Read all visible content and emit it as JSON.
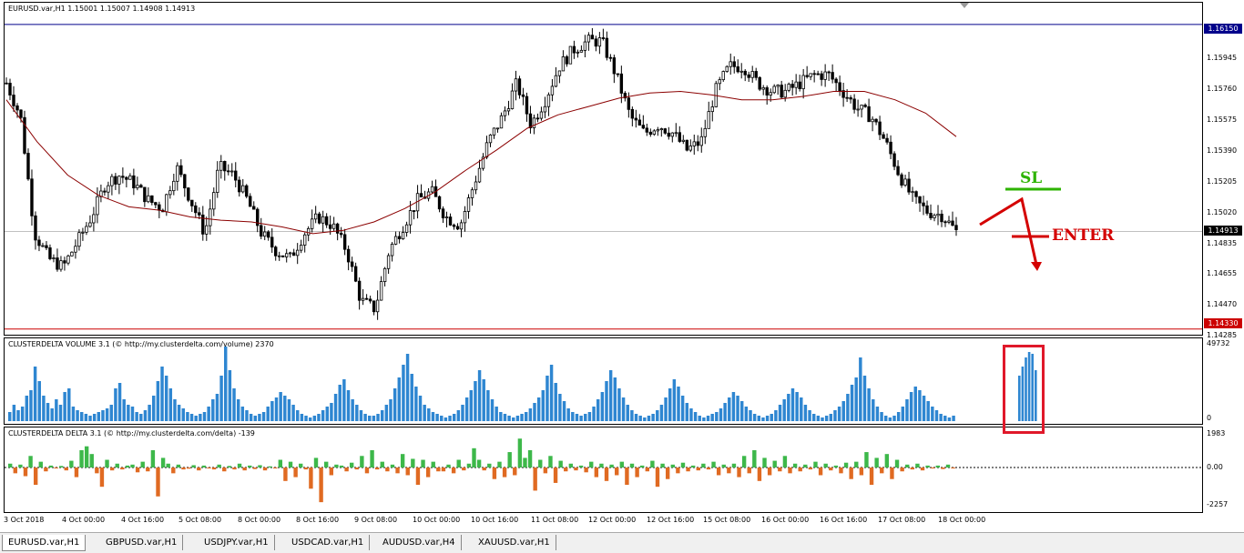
{
  "main_chart": {
    "title": "EURUSD.var,H1  1.15001 1.15007 1.14908 1.14913",
    "upper_line_label": "1.16150",
    "lower_line_label": "1.14330",
    "current_price_label": "1.14913",
    "price_ticks": [
      "1.15945",
      "1.15760",
      "1.15575",
      "1.15390",
      "1.15205",
      "1.15020",
      "1.14835",
      "1.14655",
      "1.14470",
      "1.14285"
    ],
    "colors": {
      "upper_line": "#00008b",
      "lower_line": "#cc0000",
      "ma": "#8b0000",
      "candle": "#000000",
      "sl": "#2db300",
      "enter": "#d40000"
    },
    "annotations": {
      "sl": "SL",
      "enter": "ENTER"
    },
    "chart_data": {
      "type": "candlestick",
      "symbol": "EURUSD.var",
      "timeframe": "H1",
      "ylim": [
        1.14285,
        1.1628
      ],
      "levels": {
        "upper": 1.1615,
        "lower": 1.1433,
        "current": 1.14913
      },
      "x_tick_labels": [
        "3 Oct 2018",
        "4 Oct 00:00",
        "4 Oct 16:00",
        "5 Oct 08:00",
        "8 Oct 00:00",
        "8 Oct 16:00",
        "9 Oct 08:00",
        "10 Oct 00:00",
        "10 Oct 16:00",
        "11 Oct 08:00",
        "12 Oct 00:00",
        "12 Oct 16:00",
        "15 Oct 08:00",
        "16 Oct 00:00",
        "16 Oct 16:00",
        "17 Oct 08:00",
        "18 Oct 00:00"
      ],
      "close_path": [
        1.158,
        1.156,
        1.149,
        1.1475,
        1.147,
        1.1485,
        1.15,
        1.152,
        1.1525,
        1.152,
        1.151,
        1.1505,
        1.153,
        1.151,
        1.149,
        1.153,
        1.1525,
        1.151,
        1.149,
        1.148,
        1.1475,
        1.149,
        1.15,
        1.1495,
        1.148,
        1.145,
        1.1445,
        1.148,
        1.1495,
        1.151,
        1.1515,
        1.15,
        1.1495,
        1.152,
        1.1545,
        1.156,
        1.158,
        1.1555,
        1.157,
        1.159,
        1.16,
        1.1605,
        1.1605,
        1.1585,
        1.156,
        1.155,
        1.1555,
        1.155,
        1.154,
        1.1545,
        1.1575,
        1.159,
        1.159,
        1.158,
        1.1575,
        1.1575,
        1.158,
        1.1585,
        1.1585,
        1.1575,
        1.1565,
        1.156,
        1.1545,
        1.1525,
        1.151,
        1.1503,
        1.1501,
        1.14913
      ],
      "ma_path": [
        1.157,
        1.1545,
        1.1525,
        1.1513,
        1.1506,
        1.1504,
        1.15,
        1.1498,
        1.1497,
        1.1494,
        1.149,
        1.1492,
        1.1497,
        1.1505,
        1.1515,
        1.1528,
        1.154,
        1.1553,
        1.1561,
        1.1566,
        1.1571,
        1.1574,
        1.1575,
        1.1573,
        1.157,
        1.157,
        1.1572,
        1.1575,
        1.1575,
        1.157,
        1.1562,
        1.1548
      ]
    }
  },
  "volume": {
    "title": "CLUSTERDELTA VOLUME 3.1 (© http://my.clusterdelta.com/volume) 2370",
    "max_label": "49732",
    "zero_label": "0",
    "color": "#2e86d1",
    "chart_data": {
      "type": "bar",
      "ylim": [
        0,
        49732
      ],
      "values": [
        5,
        9,
        6,
        8,
        14,
        17,
        30,
        22,
        14,
        10,
        7,
        12,
        9,
        16,
        18,
        8,
        6,
        5,
        4,
        3,
        4,
        5,
        6,
        7,
        9,
        18,
        21,
        12,
        9,
        8,
        5,
        4,
        6,
        9,
        14,
        22,
        30,
        25,
        18,
        12,
        9,
        7,
        5,
        4,
        3,
        4,
        5,
        8,
        12,
        15,
        25,
        41,
        28,
        18,
        12,
        8,
        6,
        4,
        3,
        4,
        5,
        8,
        11,
        13,
        16,
        14,
        12,
        9,
        6,
        4,
        3,
        2,
        3,
        4,
        6,
        8,
        10,
        15,
        20,
        23,
        17,
        12,
        9,
        6,
        4,
        3,
        3,
        4,
        6,
        9,
        12,
        18,
        24,
        31,
        37,
        26,
        19,
        14,
        9,
        7,
        5,
        4,
        3,
        2,
        3,
        4,
        6,
        9,
        13,
        17,
        22,
        28,
        23,
        17,
        12,
        8,
        5,
        4,
        3,
        2,
        3,
        4,
        5,
        7,
        10,
        13,
        17,
        25,
        31,
        21,
        15,
        11,
        7,
        5,
        4,
        3,
        4,
        5,
        8,
        12,
        16,
        22,
        28,
        24,
        18,
        13,
        9,
        6,
        4,
        3,
        2,
        3,
        4,
        6,
        9,
        13,
        18,
        23,
        19,
        14,
        10,
        7,
        5,
        3,
        2,
        3,
        4,
        5,
        7,
        10,
        13,
        16,
        14,
        11,
        8,
        6,
        4,
        3,
        2,
        3,
        4,
        6,
        9,
        12,
        15,
        18,
        16,
        13,
        9,
        6,
        4,
        3,
        2,
        3,
        4,
        6,
        8,
        11,
        15,
        20,
        24,
        35,
        25,
        18,
        12,
        8,
        5,
        3,
        2,
        3,
        5,
        8,
        12,
        16,
        19,
        17,
        14,
        11,
        8,
        6,
        4,
        3,
        2,
        3
      ],
      "highlight_values": [
        25,
        30,
        35,
        38,
        37,
        28
      ]
    }
  },
  "delta": {
    "title": "CLUSTERDELTA DELTA 3.1 (© http://my.clusterdelta.com/delta) -139",
    "max_label": "1983",
    "zero_label": "0.00",
    "min_label": "-2257",
    "colors": {
      "positive": "#3db84a",
      "negative": "#e06a22"
    },
    "chart_data": {
      "type": "bar",
      "ylim": [
        -2257,
        1983
      ],
      "values": [
        200,
        -300,
        150,
        -450,
        600,
        -900,
        300,
        -200,
        100,
        -50,
        80,
        -150,
        350,
        -500,
        900,
        1100,
        700,
        -300,
        -1000,
        400,
        -150,
        200,
        -100,
        100,
        150,
        -250,
        300,
        -200,
        900,
        -1500,
        500,
        200,
        -300,
        150,
        -100,
        -60,
        120,
        -150,
        100,
        -50,
        -100,
        150,
        -200,
        80,
        -100,
        200,
        -150,
        100,
        -80,
        120,
        -150,
        60,
        -50,
        400,
        -700,
        300,
        -500,
        200,
        -100,
        -1100,
        500,
        -1800,
        300,
        -400,
        150,
        100,
        -200,
        250,
        -100,
        600,
        -300,
        900,
        -100,
        300,
        -200,
        150,
        -300,
        700,
        -400,
        450,
        -900,
        400,
        -500,
        300,
        -200,
        -200,
        150,
        -300,
        400,
        -150,
        200,
        1000,
        400,
        -150,
        200,
        -600,
        300,
        -500,
        800,
        -400,
        1500,
        500,
        900,
        -1200,
        400,
        -300,
        600,
        -800,
        350,
        -200,
        200,
        -150,
        100,
        -250,
        300,
        -500,
        200,
        -700,
        150,
        -400,
        300,
        -900,
        200,
        -500,
        100,
        -200,
        350,
        -1000,
        200,
        -600,
        150,
        -300,
        250,
        -200,
        100,
        -150,
        200,
        -100,
        300,
        -400,
        150,
        -300,
        200,
        -500,
        600,
        -300,
        900,
        -700,
        500,
        -400,
        350,
        -200,
        600,
        -300,
        200,
        -200,
        150,
        -100,
        300,
        -400,
        200,
        -150,
        100,
        -300,
        250,
        -600,
        300,
        -400,
        800,
        -900,
        500,
        -300,
        700,
        -600,
        400,
        -200,
        150,
        -100,
        200,
        -150,
        100,
        -50,
        100,
        -80,
        150,
        -50
      ]
    }
  },
  "time_axis": {
    "labels": [
      "3 Oct 2018",
      "4 Oct 00:00",
      "4 Oct 16:00",
      "5 Oct 08:00",
      "8 Oct 00:00",
      "8 Oct 16:00",
      "9 Oct 08:00",
      "10 Oct 00:00",
      "10 Oct 16:00",
      "11 Oct 08:00",
      "12 Oct 00:00",
      "12 Oct 16:00",
      "15 Oct 08:00",
      "16 Oct 00:00",
      "16 Oct 16:00",
      "17 Oct 08:00",
      "18 Oct 00:00"
    ]
  },
  "tabs": [
    {
      "label": "EURUSD.var,H1",
      "active": true
    },
    {
      "label": "GBPUSD.var,H1",
      "active": false
    },
    {
      "label": "USDJPY.var,H1",
      "active": false
    },
    {
      "label": "USDCAD.var,H1",
      "active": false
    },
    {
      "label": "AUDUSD.var,H4",
      "active": false
    },
    {
      "label": "XAUUSD.var,H1",
      "active": false
    }
  ]
}
